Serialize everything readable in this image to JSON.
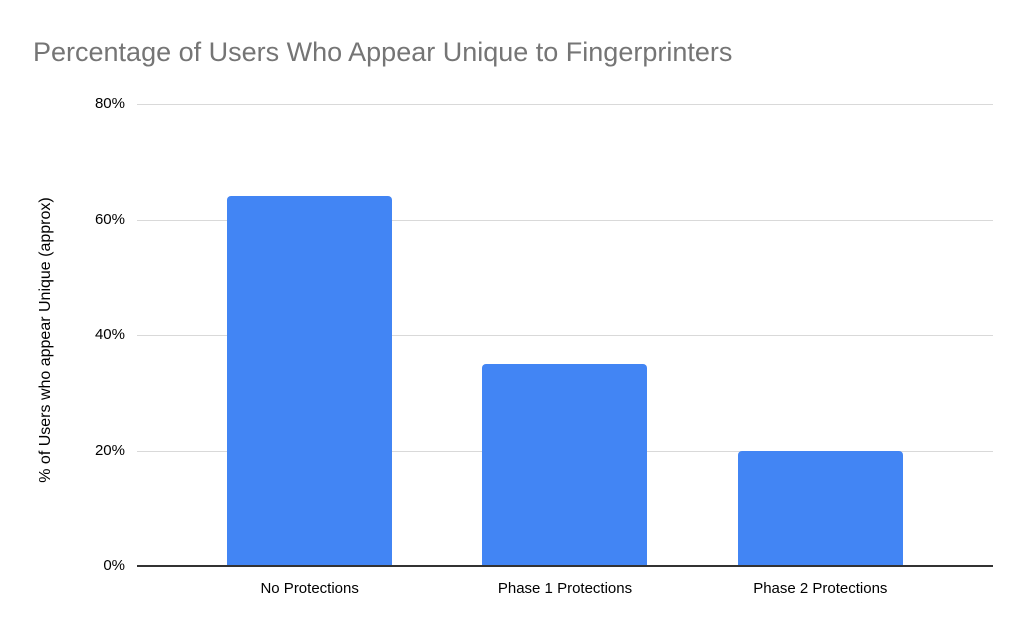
{
  "chart_data": {
    "type": "bar",
    "title": "Percentage of Users Who Appear Unique to Fingerprinters",
    "categories": [
      "No Protections",
      "Phase 1 Protections",
      "Phase 2 Protections"
    ],
    "values": [
      64,
      35,
      20
    ],
    "xlabel": "",
    "ylabel": "% of Users who appear Unique (approx)",
    "ylim": [
      0,
      80
    ],
    "yticks": [
      0,
      20,
      40,
      60,
      80
    ],
    "ytick_labels": [
      "0%",
      "20%",
      "40%",
      "60%",
      "80%"
    ],
    "grid": true,
    "legend": false
  },
  "colors": {
    "bar": "#4285f4",
    "title_text": "#757575",
    "gridline": "#d9d9d9",
    "axis_line": "#333333",
    "tick_text": "#000000"
  }
}
